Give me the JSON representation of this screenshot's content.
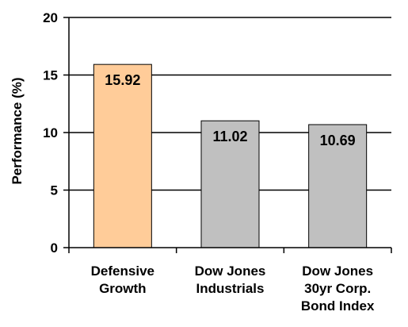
{
  "chart_data": {
    "type": "bar",
    "title": "",
    "xlabel": "",
    "ylabel": "Performance (%)",
    "ylim": [
      0,
      20
    ],
    "yticks": [
      0,
      5,
      10,
      15,
      20
    ],
    "grid": true,
    "categories": [
      [
        "Defensive",
        "Growth"
      ],
      [
        "Dow Jones",
        "Industrials"
      ],
      [
        "Dow Jones",
        "30yr Corp.",
        "Bond Index"
      ]
    ],
    "values": [
      15.92,
      11.02,
      10.69
    ],
    "value_labels": [
      "15.92",
      "11.02",
      "10.69"
    ],
    "bar_colors": [
      "#FFCC99",
      "#C0C0C0",
      "#C0C0C0"
    ],
    "bar_stroke": "#000000"
  }
}
